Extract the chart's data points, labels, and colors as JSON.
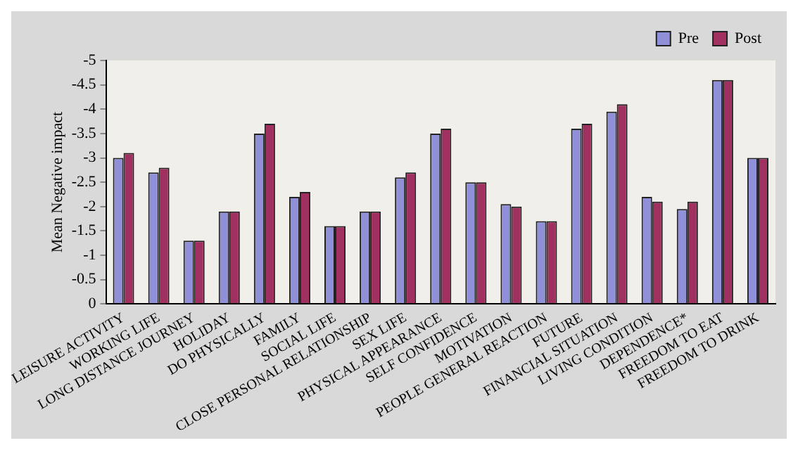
{
  "chart_data": {
    "type": "bar",
    "ylabel": "Mean Negative impact",
    "categories": [
      "LEISURE ACTIVITY",
      "WORKING LIFE",
      "LONG DISTANCE JOURNEY",
      "HOLIDAY",
      "DO PHYSICALLY",
      "FAMILY",
      "SOCIAL LIFE",
      "CLOSE PERSONAL RELATIONSHIP",
      "SEX LIFE",
      "PHYSICAL APPEARANCE",
      "SELF CONFIDENCE",
      "MOTIVATION",
      "PEOPLE GENERAL REACTION",
      "FUTURE",
      "FINANCIAL SITUATION",
      "LIVING CONDITION",
      "DEPENDENCE*",
      "FREEDOM TO EAT",
      "FREEDOM TO DRINK"
    ],
    "series": [
      {
        "name": "Pre",
        "color": "#9090d8",
        "values": [
          -3.0,
          -2.7,
          -1.3,
          -1.9,
          -3.5,
          -2.2,
          -1.6,
          -1.9,
          -2.6,
          -3.5,
          -2.5,
          -2.05,
          -1.7,
          -3.6,
          -3.95,
          -2.2,
          -1.95,
          -4.6,
          -3.0
        ]
      },
      {
        "name": "Post",
        "color": "#a0305f",
        "values": [
          -3.1,
          -2.8,
          -1.3,
          -1.9,
          -3.7,
          -2.3,
          -1.6,
          -1.9,
          -2.7,
          -3.6,
          -2.5,
          -2.0,
          -1.7,
          -3.7,
          -4.1,
          -2.1,
          -2.1,
          -4.6,
          -3.0
        ]
      }
    ],
    "ylim": [
      0,
      -5
    ],
    "yticks": [
      0,
      -0.5,
      -1,
      -1.5,
      -2,
      -2.5,
      -3,
      -3.5,
      -4,
      -4.5,
      -5
    ],
    "grid": false,
    "legend": "top right"
  }
}
